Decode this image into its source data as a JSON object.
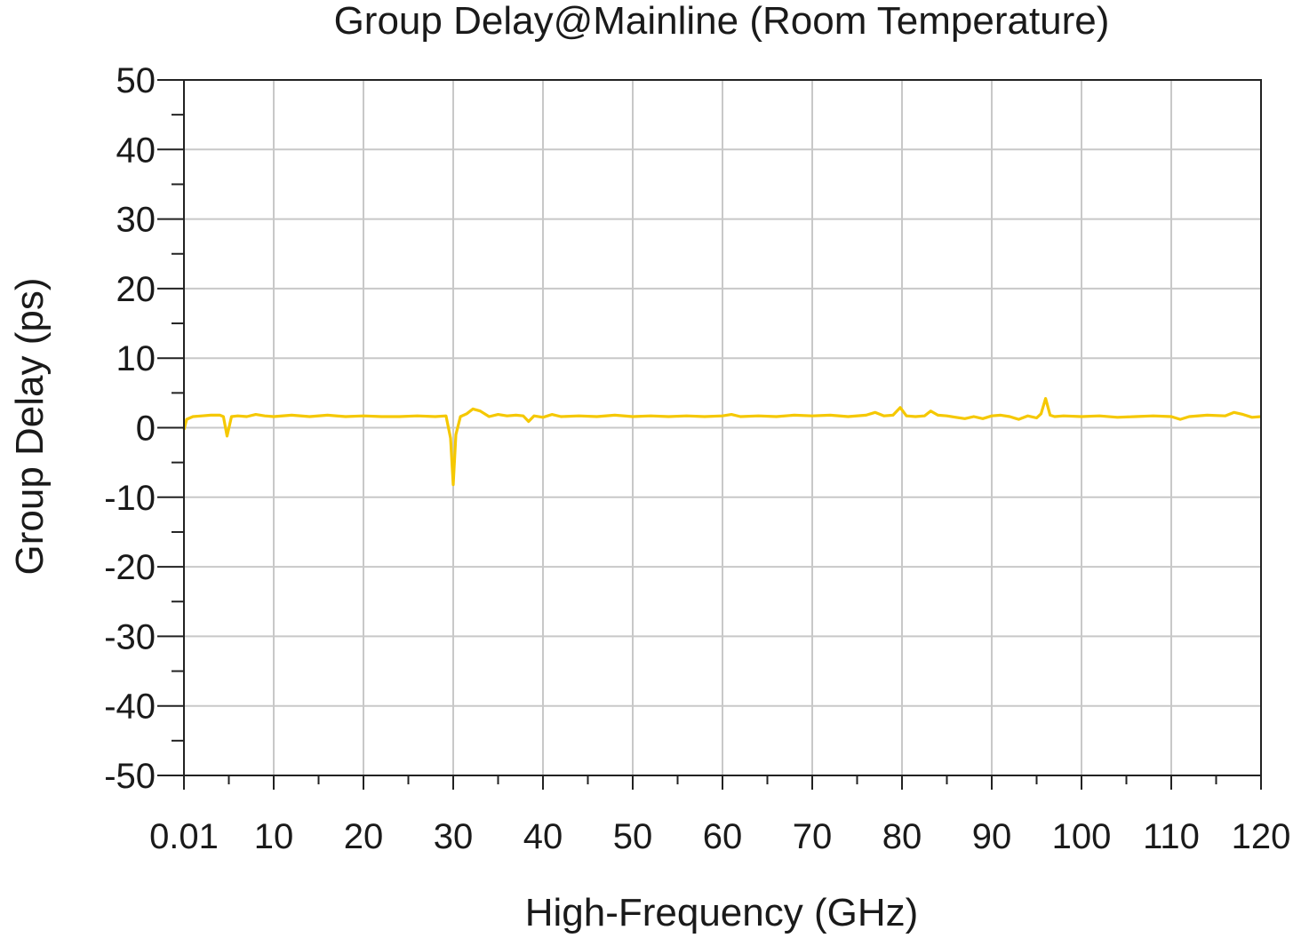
{
  "chart_data": {
    "type": "line",
    "title": "Group Delay@Mainline (Room Temperature)",
    "xlabel": "High-Frequency (GHz)",
    "ylabel": "Group Delay (ps)",
    "xlim": [
      0,
      120
    ],
    "ylim": [
      -50,
      50
    ],
    "xticks": [
      0.01,
      10,
      20,
      30,
      40,
      50,
      60,
      70,
      80,
      90,
      100,
      110,
      120
    ],
    "xtick_labels": [
      "0.01",
      "10",
      "20",
      "30",
      "40",
      "50",
      "60",
      "70",
      "80",
      "90",
      "100",
      "110",
      "120"
    ],
    "yticks": [
      50,
      40,
      30,
      20,
      10,
      0,
      -10,
      -20,
      -30,
      -40,
      -50
    ],
    "ytick_labels": [
      "50",
      "40",
      "30",
      "20",
      "10",
      "0",
      "-10",
      "-20",
      "-30",
      "-40",
      "-50"
    ],
    "grid": true,
    "legend": "none",
    "series": [
      {
        "color": "#f5c800",
        "x": [
          0.01,
          0.3,
          1,
          2,
          3,
          4,
          4.4,
          4.8,
          5.3,
          6,
          7,
          8,
          9,
          10,
          12,
          14,
          16,
          18,
          20,
          22,
          24,
          26,
          28,
          29.2,
          29.7,
          30.0,
          30.3,
          30.8,
          31.5,
          32.2,
          33,
          34,
          35,
          36,
          37,
          37.8,
          38.4,
          39,
          40,
          41,
          42,
          44,
          46,
          48,
          50,
          52,
          54,
          56,
          58,
          60,
          61,
          62,
          64,
          66,
          68,
          70,
          72,
          74,
          76,
          77,
          78,
          79,
          79.8,
          80.5,
          81.5,
          82.5,
          83.2,
          84,
          85,
          86,
          87,
          88,
          89,
          90,
          91,
          92,
          93,
          94,
          95,
          95.5,
          96,
          96.5,
          97,
          98,
          100,
          102,
          104,
          106,
          108,
          110,
          111,
          112,
          114,
          116,
          117,
          118,
          119,
          120
        ],
        "y": [
          -0.3,
          1.2,
          1.6,
          1.7,
          1.8,
          1.8,
          1.6,
          -1.2,
          1.6,
          1.7,
          1.6,
          1.9,
          1.7,
          1.6,
          1.8,
          1.6,
          1.8,
          1.6,
          1.7,
          1.6,
          1.6,
          1.7,
          1.6,
          1.7,
          -1.5,
          -8.2,
          -1.0,
          1.6,
          2.0,
          2.7,
          2.4,
          1.6,
          1.9,
          1.7,
          1.8,
          1.7,
          0.9,
          1.7,
          1.5,
          1.9,
          1.6,
          1.7,
          1.6,
          1.8,
          1.6,
          1.7,
          1.6,
          1.7,
          1.6,
          1.7,
          1.9,
          1.6,
          1.7,
          1.6,
          1.8,
          1.7,
          1.8,
          1.6,
          1.8,
          2.2,
          1.7,
          1.8,
          2.9,
          1.7,
          1.6,
          1.7,
          2.4,
          1.8,
          1.7,
          1.5,
          1.3,
          1.6,
          1.3,
          1.7,
          1.8,
          1.6,
          1.2,
          1.7,
          1.4,
          2.0,
          4.2,
          1.8,
          1.6,
          1.7,
          1.6,
          1.7,
          1.5,
          1.6,
          1.7,
          1.6,
          1.2,
          1.6,
          1.8,
          1.7,
          2.2,
          1.9,
          1.5,
          1.6
        ]
      }
    ]
  }
}
